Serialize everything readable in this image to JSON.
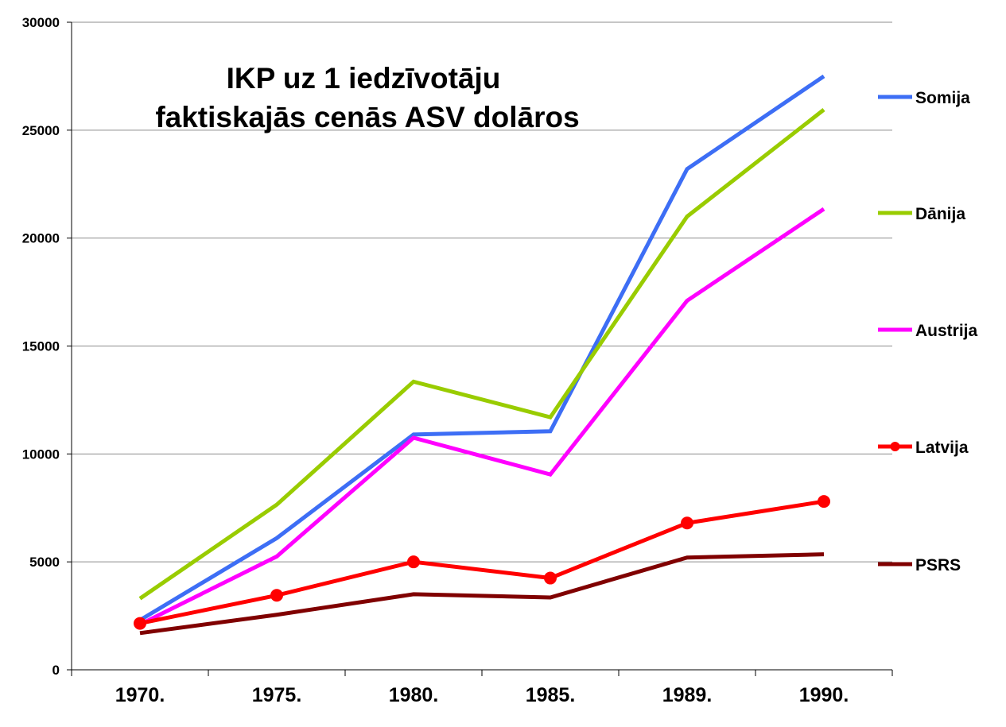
{
  "chart_data": {
    "type": "line",
    "title_lines": [
      "IKP uz 1 iedzīvotāju",
      "faktiskajās cenās ASV dolāros"
    ],
    "categories": [
      "1970.",
      "1975.",
      "1980.",
      "1985.",
      "1989.",
      "1990."
    ],
    "ylim": [
      0,
      30000
    ],
    "yticks": [
      "0",
      "5000",
      "10000",
      "15000",
      "20000",
      "25000",
      "30000"
    ],
    "ytick_values": [
      0,
      5000,
      10000,
      15000,
      20000,
      25000,
      30000
    ],
    "grid": "horizontal",
    "legend_position": "right",
    "series": [
      {
        "name": "Somija",
        "color": "#3d6ef5",
        "marker": false,
        "values": [
          2300,
          6100,
          10900,
          11050,
          23200,
          27500
        ]
      },
      {
        "name": "Dānija",
        "color": "#99cc00",
        "marker": false,
        "values": [
          3300,
          7650,
          13350,
          11700,
          21000,
          25950
        ]
      },
      {
        "name": "Austrija",
        "color": "#ff00ff",
        "marker": false,
        "values": [
          2100,
          5250,
          10750,
          9050,
          17100,
          21350
        ]
      },
      {
        "name": "Latvija",
        "color": "#ff0000",
        "marker": true,
        "values": [
          2150,
          3450,
          5000,
          4250,
          6800,
          7800
        ]
      },
      {
        "name": "PSRS",
        "color": "#800000",
        "marker": false,
        "values": [
          1700,
          2550,
          3500,
          3350,
          5200,
          5350
        ]
      }
    ]
  }
}
